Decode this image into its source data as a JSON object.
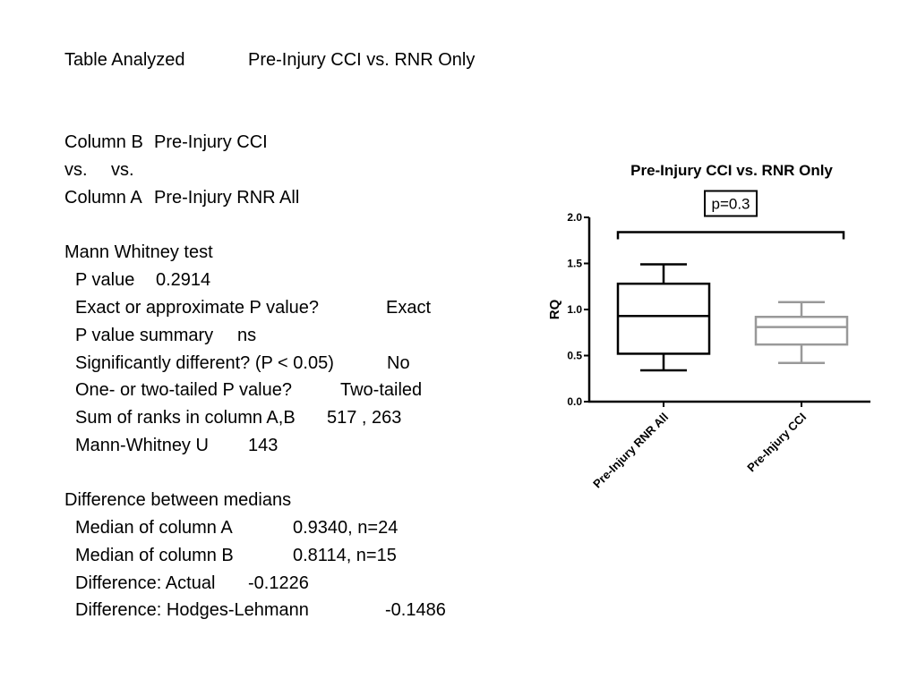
{
  "table_analyzed": {
    "label": "Table Analyzed",
    "value": "Pre-Injury CCI vs. RNR Only"
  },
  "comparison": {
    "column_b_label": "Column B",
    "column_b_value": "Pre-Injury CCI",
    "vs_left": "vs.",
    "vs_right": "vs.",
    "column_a_label": "Column A",
    "column_a_value": "Pre-Injury RNR All"
  },
  "mann_whitney": {
    "heading": "Mann Whitney test",
    "rows": [
      {
        "label": "P value",
        "value": "0.2914"
      },
      {
        "label": "Exact or approximate P value?",
        "value": "Exact"
      },
      {
        "label": "P value summary",
        "value": "ns"
      },
      {
        "label": "Significantly different? (P < 0.05)",
        "value": "No"
      },
      {
        "label": "One- or two-tailed P value?",
        "value": "Two-tailed"
      },
      {
        "label": "Sum of  ranks in column A,B",
        "value": "517 , 263"
      },
      {
        "label": "Mann-Whitney U",
        "value": "143"
      }
    ]
  },
  "medians": {
    "heading": "Difference between medians",
    "rows": [
      {
        "label": "Median of column A",
        "value": "0.9340, n=24"
      },
      {
        "label": "Median of column B",
        "value": "0.8114, n=15"
      },
      {
        "label": "Difference: Actual",
        "value": "-0.1226"
      },
      {
        "label": "Difference: Hodges-Lehmann",
        "value": "-0.1486"
      }
    ]
  },
  "chart_data": {
    "type": "box",
    "title": "Pre-Injury CCI vs. RNR Only",
    "ylabel": "RQ",
    "ylim": [
      0,
      2.0
    ],
    "yticks": [
      "0.0",
      "0.5",
      "1.0",
      "1.5",
      "2.0"
    ],
    "categories": [
      "Pre-Injury RNR All",
      "Pre-Injury CCI"
    ],
    "boxes": [
      {
        "category": "Pre-Injury RNR All",
        "min": 0.34,
        "q1": 0.52,
        "median": 0.93,
        "q3": 1.28,
        "max": 1.49,
        "color": "#000000"
      },
      {
        "category": "Pre-Injury CCI",
        "min": 0.42,
        "q1": 0.62,
        "median": 0.81,
        "q3": 0.92,
        "max": 1.08,
        "color": "#999999"
      }
    ],
    "annotation": {
      "text": "p=0.3",
      "y": 1.84
    },
    "legend": "none",
    "grid": false
  }
}
